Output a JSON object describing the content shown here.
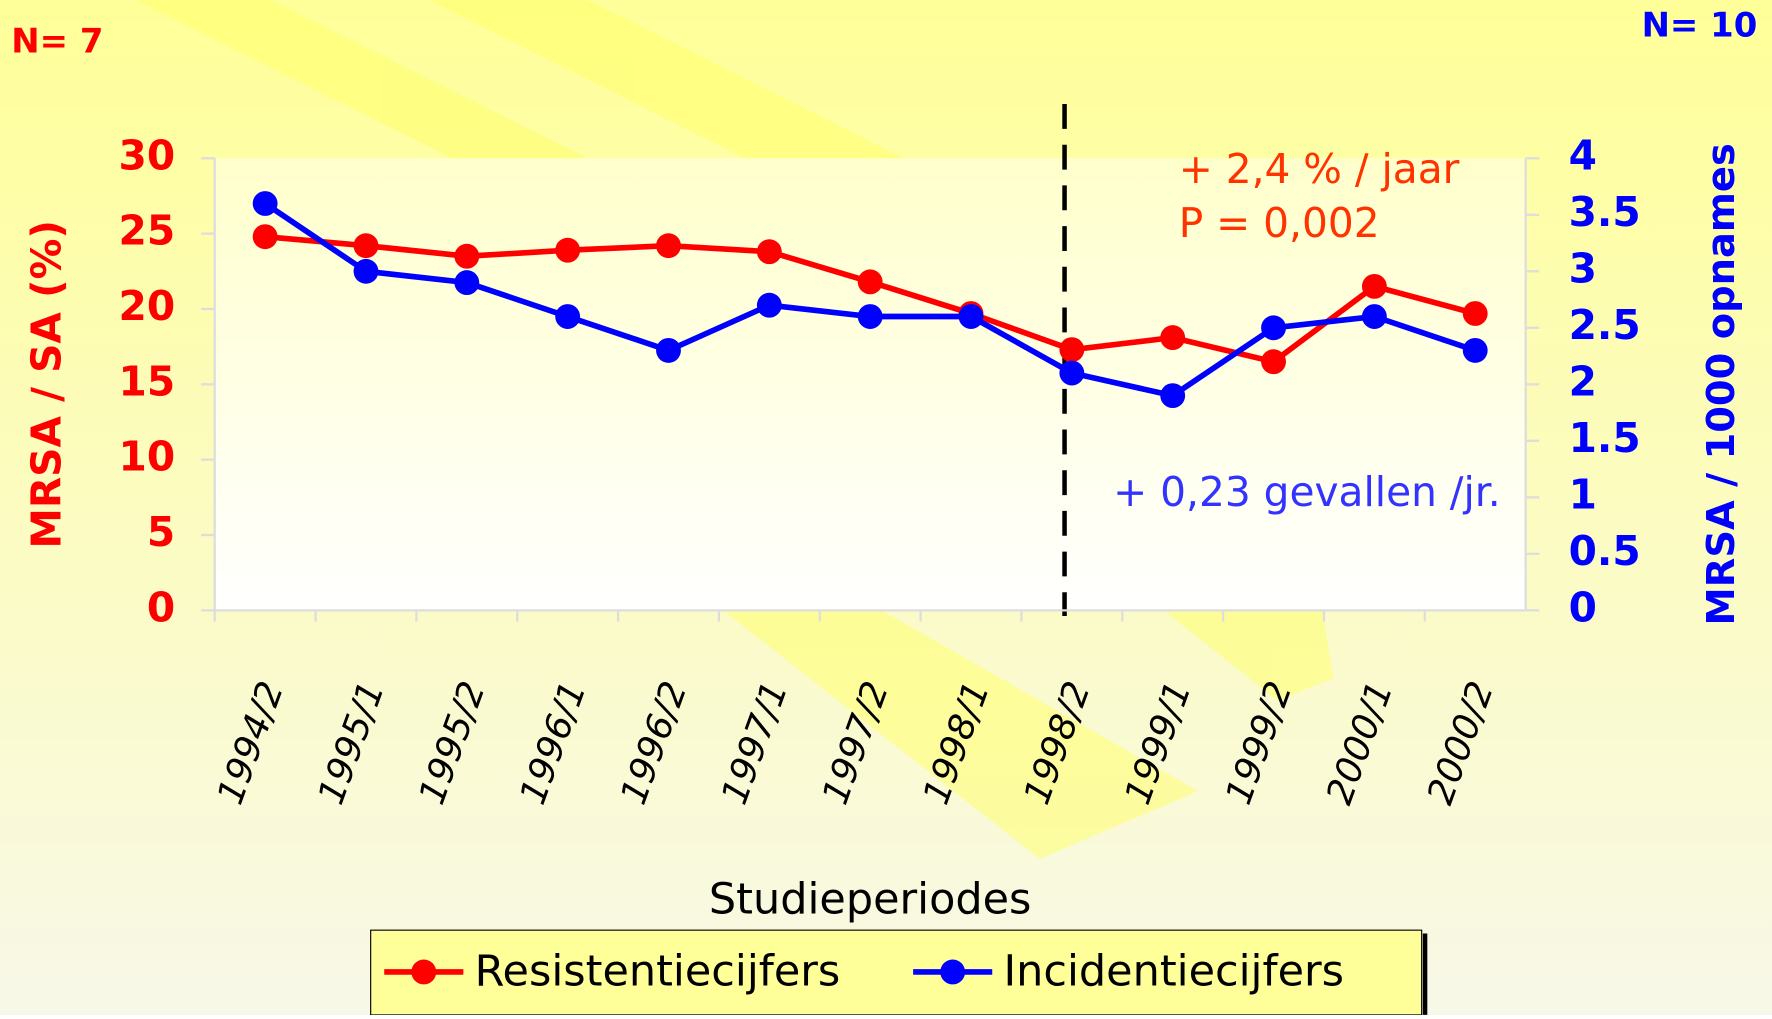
{
  "chart_data": {
    "type": "line",
    "left_note": "N= 7",
    "right_note": "N= 10",
    "annotations": [
      "+ 2,4 % / jaar",
      "P = 0,002",
      "+ 0,23 gevallen /jr."
    ],
    "x_label": "Studieperiodes",
    "y_label": "MRSA / SA (%)",
    "y2_label": "MRSA / 1000 opnames",
    "categories": [
      "1994/2",
      "1995/1",
      "1995/2",
      "1996/1",
      "1996/2",
      "1997/1",
      "1997/2",
      "1998/1",
      "1998/2",
      "1999/1",
      "1999/2",
      "2000/1",
      "2000/2"
    ],
    "series": [
      {
        "name": "Resistentiecijfers",
        "color": "#ff0000",
        "values": [
          24.8,
          24.2,
          23.5,
          23.9,
          24.2,
          23.8,
          21.8,
          19.7,
          17.3,
          18.1,
          16.5,
          21.5,
          19.7
        ]
      },
      {
        "name": "Incidentiecijfers",
        "color": "#0000ff",
        "axis": "y2",
        "values": [
          3.6,
          3.0,
          2.9,
          2.6,
          2.3,
          2.7,
          2.6,
          2.6,
          2.1,
          1.9,
          2.5,
          2.6,
          2.3
        ]
      }
    ],
    "ylim": [
      0,
      30
    ],
    "yticks": [
      0,
      5,
      10,
      15,
      20,
      25,
      30
    ],
    "y2lim": [
      0,
      4
    ],
    "y2ticks": [
      0,
      0.5,
      1,
      1.5,
      2,
      2.5,
      3,
      3.5,
      4
    ]
  }
}
